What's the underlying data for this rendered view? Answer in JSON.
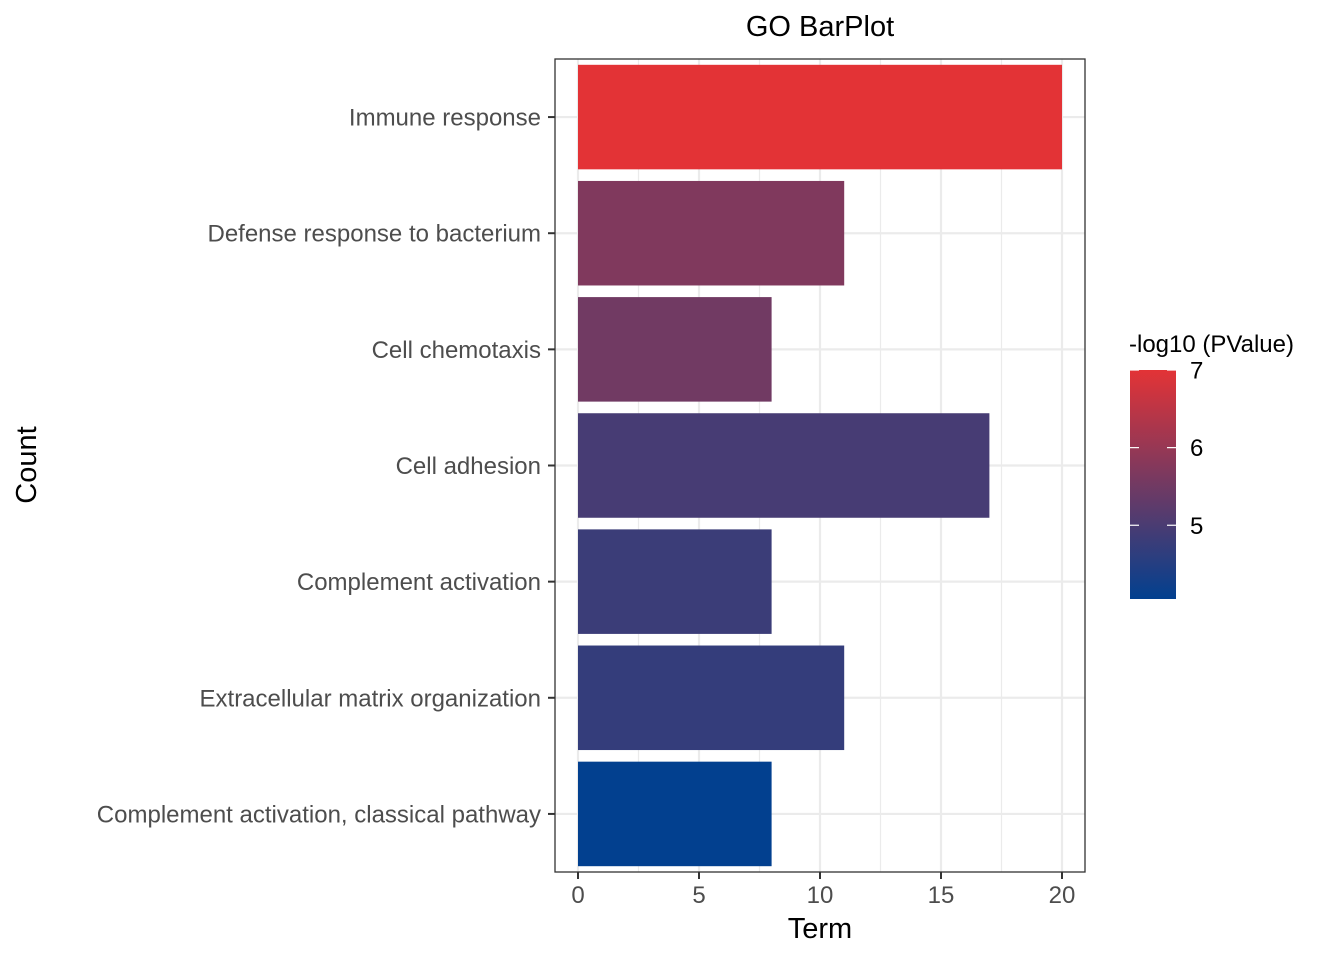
{
  "chart_data": {
    "type": "bar",
    "orientation": "horizontal",
    "title": "GO BarPlot",
    "xlabel": "Term",
    "ylabel": "Count",
    "categories": [
      "Immune response",
      "Defense response to bacterium",
      "Cell chemotaxis",
      "Cell adhesion",
      "Complement activation",
      "Extracellular matrix organization",
      "Complement activation, classical pathway"
    ],
    "values": [
      20,
      11,
      8,
      17,
      8,
      11,
      8
    ],
    "color_values": [
      7.0,
      5.7,
      5.5,
      4.95,
      4.8,
      4.7,
      4.05
    ],
    "xlim": [
      0,
      20.9
    ],
    "x_ticks": [
      0,
      5,
      10,
      15,
      20
    ],
    "grid": true,
    "legend": {
      "title": "-log10 (PValue)",
      "position": "right",
      "range": [
        4.05,
        7.0
      ],
      "ticks": [
        7,
        6,
        5
      ],
      "color_low": "#02408f",
      "color_high": "#e33336"
    }
  }
}
